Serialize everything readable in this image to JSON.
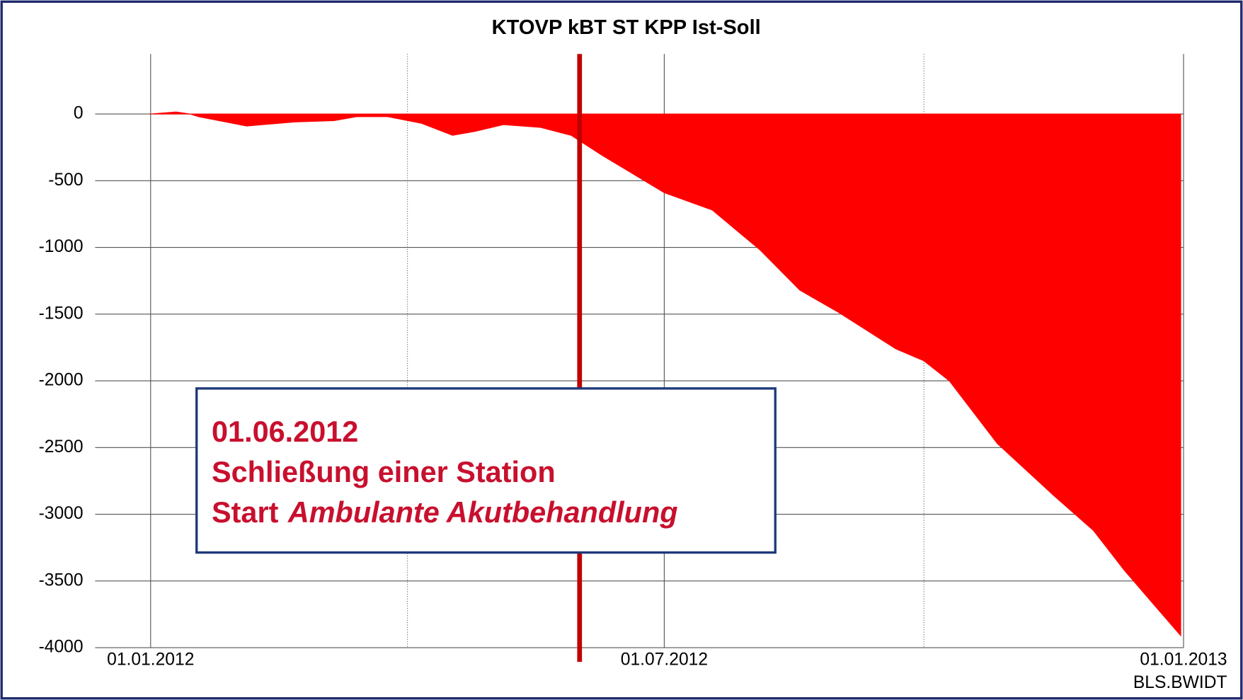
{
  "chart_data": {
    "type": "area",
    "title": "KTOVP kBT ST KPP Ist-Soll",
    "source": "BLS.BWIDT",
    "color": "#ff0000",
    "x": [
      "2012-01-01",
      "2012-01-10",
      "2012-01-15",
      "2012-01-18",
      "2012-02-04",
      "2012-02-21",
      "2012-03-06",
      "2012-03-14",
      "2012-03-25",
      "2012-04-06",
      "2012-04-17",
      "2012-04-25",
      "2012-05-05",
      "2012-05-18",
      "2012-05-29",
      "2012-06-09",
      "2012-07-01",
      "2012-07-18",
      "2012-08-04",
      "2012-08-18",
      "2012-09-01",
      "2012-09-21",
      "2012-10-01",
      "2012-10-10",
      "2012-10-27",
      "2012-11-16",
      "2012-11-30",
      "2012-12-11",
      "2012-12-22",
      "2012-12-31"
    ],
    "values": [
      0,
      15,
      0,
      -20,
      -90,
      -60,
      -50,
      -20,
      -20,
      -70,
      -160,
      -130,
      -80,
      -100,
      -160,
      -310,
      -590,
      -720,
      -1020,
      -1320,
      -1490,
      -1760,
      -1850,
      -2000,
      -2470,
      -2860,
      -3120,
      -3420,
      -3690,
      -3910
    ],
    "xlim": [
      "2012-01-01",
      "2013-01-01"
    ],
    "xticks": [
      {
        "value": "2012-01-01",
        "label": "01.01.2012"
      },
      {
        "value": "2012-07-01",
        "label": "01.07.2012"
      },
      {
        "value": "2013-01-01",
        "label": "01.01.2013"
      }
    ],
    "xgrid_minor": [
      "2012-04-01",
      "2012-10-01"
    ],
    "ylim": [
      -4000,
      450
    ],
    "yticks": [
      0,
      -500,
      -1000,
      -1500,
      -2000,
      -2500,
      -3000,
      -3500,
      -4000
    ],
    "grid": true,
    "event_date": "2012-06-01",
    "event_color": "#c00000",
    "annotation": {
      "line1": "01.06.2012",
      "line2": "Schließung einer Station",
      "line3_start": "Start",
      "line3_italic": "Ambulante Akutbehandlung"
    }
  }
}
